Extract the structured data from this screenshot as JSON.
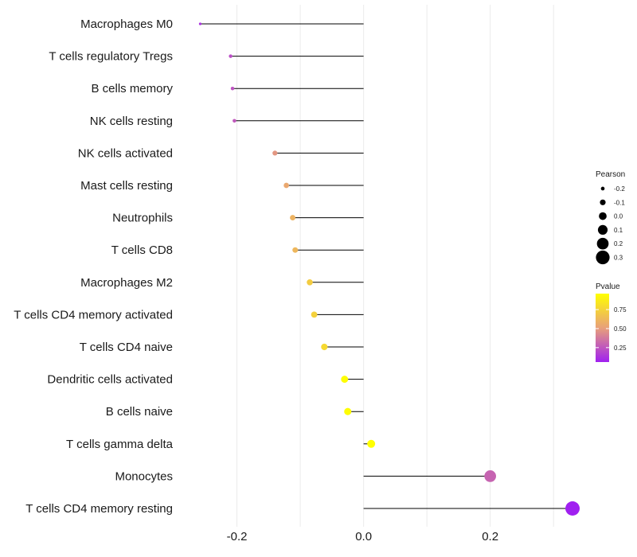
{
  "chart_data": {
    "type": "lollipop",
    "title": "",
    "xlabel": "",
    "ylabel": "",
    "xlim": [
      -0.285,
      0.335
    ],
    "xticks": [
      -0.2,
      0.0,
      0.2
    ],
    "xtick_labels": [
      "-0.2",
      "0.0",
      "0.2"
    ],
    "minor_gridlines": [
      -0.1,
      0.1,
      0.3
    ],
    "grid": true,
    "categories": [
      "Macrophages M0",
      "T cells regulatory  Tregs",
      "B cells memory",
      "NK cells resting",
      "NK cells activated",
      "Mast cells resting",
      "Neutrophils",
      "T cells CD8",
      "Macrophages M2",
      "T cells CD4 memory activated",
      "T cells CD4 naive",
      "Dendritic cells activated",
      "B cells naive",
      "T cells gamma delta",
      "Monocytes",
      "T cells CD4 memory resting"
    ],
    "pearson": [
      -0.258,
      -0.21,
      -0.207,
      -0.204,
      -0.14,
      -0.122,
      -0.112,
      -0.108,
      -0.085,
      -0.078,
      -0.062,
      -0.03,
      -0.025,
      0.012,
      0.2,
      0.33
    ],
    "pvalue": [
      0.12,
      0.22,
      0.24,
      0.26,
      0.48,
      0.55,
      0.6,
      0.62,
      0.72,
      0.74,
      0.78,
      0.95,
      0.95,
      0.96,
      0.3,
      0.06
    ],
    "size_legend": {
      "title": "Pearson",
      "values": [
        -0.2,
        -0.1,
        0.0,
        0.1,
        0.2,
        0.3
      ],
      "labels": [
        "-0.2",
        "-0.1",
        "0.0",
        "0.1",
        "0.2",
        "0.3"
      ]
    },
    "color_legend": {
      "title": "Pvalue",
      "breaks": [
        0.75,
        0.5,
        0.25
      ],
      "labels": [
        "0.75",
        "0.50",
        "0.25"
      ],
      "range": [
        0.06,
        0.96
      ],
      "low_color": "#a020f0",
      "mid_color": "#e8a07a",
      "high_color": "#ffff00"
    },
    "colors": {
      "stem": "#000000",
      "grid": "#ebebeb"
    }
  }
}
